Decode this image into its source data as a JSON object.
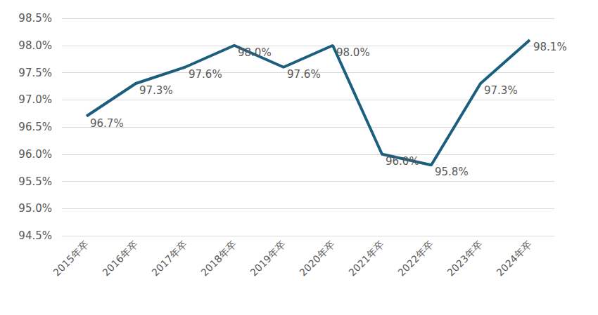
{
  "chart_data": {
    "type": "line",
    "categories": [
      "2015年卒",
      "2016年卒",
      "2017年卒",
      "2018年卒",
      "2019年卒",
      "2020年卒",
      "2021年卒",
      "2022年卒",
      "2023年卒",
      "2024年卒"
    ],
    "values": [
      96.7,
      97.3,
      97.6,
      98.0,
      97.6,
      98.0,
      96.0,
      95.8,
      97.3,
      98.1
    ],
    "value_labels": [
      "96.7%",
      "97.3%",
      "97.6%",
      "98.0%",
      "97.6%",
      "98.0%",
      "96.0%",
      "95.8%",
      "97.3%",
      "98.1%"
    ],
    "color": "#1b5e7e",
    "ylim": [
      94.5,
      98.5
    ],
    "yticks": [
      {
        "value": 94.5,
        "label": "94.5%"
      },
      {
        "value": 95.0,
        "label": "95.0%"
      },
      {
        "value": 95.5,
        "label": "95.5%"
      },
      {
        "value": 96.0,
        "label": "96.0%"
      },
      {
        "value": 96.5,
        "label": "96.5%"
      },
      {
        "value": 97.0,
        "label": "97.0%"
      },
      {
        "value": 97.5,
        "label": "97.5%"
      },
      {
        "value": 98.0,
        "label": "98.0%"
      },
      {
        "value": 98.5,
        "label": "98.5%"
      }
    ],
    "grid": true,
    "data_labels": true
  }
}
